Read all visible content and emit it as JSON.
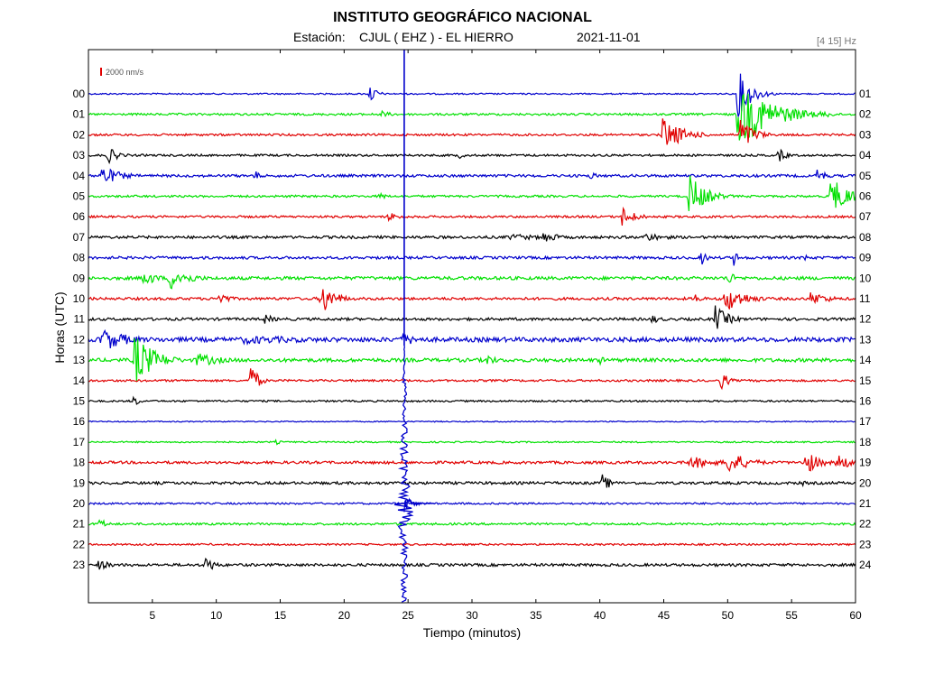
{
  "header": {
    "title": "INSTITUTO GEOGRÁFICO NACIONAL",
    "station_label": "Estación:",
    "station": "CJUL ( EHZ ) - EL HIERRO",
    "date": "2021-11-01",
    "filter": "[4 15] Hz",
    "scale": "2000 nm/s"
  },
  "chart_data": {
    "type": "line",
    "subtype": "helicorder",
    "title": "INSTITUTO GEOGRÁFICO NACIONAL",
    "xlabel": "Tiempo (minutos)",
    "ylabel": "Horas (UTC)",
    "xlim": [
      0,
      60
    ],
    "x_ticks": [
      5,
      10,
      15,
      20,
      25,
      30,
      35,
      40,
      45,
      50,
      55,
      60
    ],
    "left_labels": [
      "00",
      "01",
      "02",
      "03",
      "04",
      "05",
      "06",
      "07",
      "08",
      "09",
      "10",
      "11",
      "12",
      "13",
      "14",
      "15",
      "16",
      "17",
      "18",
      "19",
      "20",
      "21",
      "22",
      "23"
    ],
    "right_labels": [
      "01",
      "02",
      "03",
      "04",
      "05",
      "06",
      "07",
      "08",
      "09",
      "10",
      "11",
      "12",
      "13",
      "14",
      "15",
      "16",
      "17",
      "18",
      "19",
      "20",
      "21",
      "22",
      "23",
      "24"
    ],
    "colors": [
      "#0000cc",
      "#00e000",
      "#e00000",
      "#000000"
    ],
    "noise": [
      0.8,
      1.2,
      1.2,
      1.2,
      1.5,
      1.2,
      1.2,
      1.5,
      1.5,
      1.8,
      1.5,
      1.5,
      2.5,
      2.0,
      1.2,
      1.0,
      0.6,
      0.8,
      1.5,
      1.5,
      1.0,
      1.2,
      1.0,
      1.5
    ],
    "events": [
      {
        "hour": 0,
        "minute": 22.0,
        "amp": 12,
        "dur": 0.5
      },
      {
        "hour": 0,
        "minute": 50.8,
        "amp": 28,
        "dur": 1.0
      },
      {
        "hour": 1,
        "minute": 22.8,
        "amp": 5,
        "dur": 0.8
      },
      {
        "hour": 1,
        "minute": 50.8,
        "amp": 38,
        "dur": 2.5
      },
      {
        "hour": 1,
        "minute": 57.8,
        "amp": 4,
        "dur": 0.6
      },
      {
        "hour": 2,
        "minute": 44.9,
        "amp": 20,
        "dur": 1.5
      },
      {
        "hour": 2,
        "minute": 51.0,
        "amp": 20,
        "dur": 1.0
      },
      {
        "hour": 3,
        "minute": 1.5,
        "amp": 10,
        "dur": 0.8
      },
      {
        "hour": 3,
        "minute": 29.0,
        "amp": 4,
        "dur": 0.5
      },
      {
        "hour": 3,
        "minute": 54.0,
        "amp": 8,
        "dur": 0.6
      },
      {
        "hour": 4,
        "minute": 0.9,
        "amp": 12,
        "dur": 1.5
      },
      {
        "hour": 4,
        "minute": 13.0,
        "amp": 6,
        "dur": 0.5
      },
      {
        "hour": 4,
        "minute": 39.3,
        "amp": 5,
        "dur": 0.5
      },
      {
        "hour": 4,
        "minute": 57.0,
        "amp": 10,
        "dur": 0.6
      },
      {
        "hour": 5,
        "minute": 22.8,
        "amp": 5,
        "dur": 0.5
      },
      {
        "hour": 5,
        "minute": 47.0,
        "amp": 25,
        "dur": 1.2
      },
      {
        "hour": 5,
        "minute": 58.0,
        "amp": 22,
        "dur": 1.5
      },
      {
        "hour": 6,
        "minute": 23.5,
        "amp": 6,
        "dur": 0.8
      },
      {
        "hour": 6,
        "minute": 41.7,
        "amp": 12,
        "dur": 1.0
      },
      {
        "hour": 7,
        "minute": 33.0,
        "amp": 4,
        "dur": 3.0
      },
      {
        "hour": 7,
        "minute": 35.6,
        "amp": 8,
        "dur": 1.0
      },
      {
        "hour": 7,
        "minute": 43.5,
        "amp": 5,
        "dur": 2.0
      },
      {
        "hour": 8,
        "minute": 48.0,
        "amp": 12,
        "dur": 0.3
      },
      {
        "hour": 8,
        "minute": 50.5,
        "amp": 10,
        "dur": 0.3
      },
      {
        "hour": 8,
        "minute": 56.0,
        "amp": 5,
        "dur": 0.4
      },
      {
        "hour": 9,
        "minute": 4.3,
        "amp": 10,
        "dur": 1.0
      },
      {
        "hour": 9,
        "minute": 6.3,
        "amp": 14,
        "dur": 1.5
      },
      {
        "hour": 9,
        "minute": 50.0,
        "amp": 10,
        "dur": 0.5
      },
      {
        "hour": 10,
        "minute": 10.2,
        "amp": 8,
        "dur": 0.8
      },
      {
        "hour": 10,
        "minute": 18.2,
        "amp": 20,
        "dur": 1.0
      },
      {
        "hour": 10,
        "minute": 47.5,
        "amp": 6,
        "dur": 0.6
      },
      {
        "hour": 10,
        "minute": 49.8,
        "amp": 16,
        "dur": 1.5
      },
      {
        "hour": 10,
        "minute": 56.5,
        "amp": 8,
        "dur": 1.5
      },
      {
        "hour": 11,
        "minute": 13.8,
        "amp": 6,
        "dur": 0.8
      },
      {
        "hour": 11,
        "minute": 44.0,
        "amp": 5,
        "dur": 1.0
      },
      {
        "hour": 11,
        "minute": 49.0,
        "amp": 16,
        "dur": 1.0
      },
      {
        "hour": 12,
        "minute": 1.0,
        "amp": 14,
        "dur": 2.0
      },
      {
        "hour": 12,
        "minute": 12.0,
        "amp": 5,
        "dur": 8.0
      },
      {
        "hour": 12,
        "minute": 24.2,
        "amp": 8,
        "dur": 2.0
      },
      {
        "hour": 13,
        "minute": 3.6,
        "amp": 30,
        "dur": 1.5
      },
      {
        "hour": 13,
        "minute": 8.5,
        "amp": 8,
        "dur": 2.0
      },
      {
        "hour": 13,
        "minute": 31.2,
        "amp": 8,
        "dur": 0.6
      },
      {
        "hour": 13,
        "minute": 40.0,
        "amp": 5,
        "dur": 0.5
      },
      {
        "hour": 14,
        "minute": 12.7,
        "amp": 22,
        "dur": 0.5
      },
      {
        "hour": 14,
        "minute": 49.5,
        "amp": 12,
        "dur": 0.5
      },
      {
        "hour": 15,
        "minute": 3.5,
        "amp": 8,
        "dur": 0.4
      },
      {
        "hour": 17,
        "minute": 14.7,
        "amp": 3,
        "dur": 0.4
      },
      {
        "hour": 18,
        "minute": 47.0,
        "amp": 8,
        "dur": 2.0
      },
      {
        "hour": 18,
        "minute": 50.0,
        "amp": 14,
        "dur": 1.5
      },
      {
        "hour": 18,
        "minute": 56.0,
        "amp": 16,
        "dur": 1.0
      },
      {
        "hour": 18,
        "minute": 58.5,
        "amp": 10,
        "dur": 1.2
      },
      {
        "hour": 19,
        "minute": 40.2,
        "amp": 10,
        "dur": 0.7
      },
      {
        "hour": 19,
        "minute": 55.8,
        "amp": 4,
        "dur": 0.4
      },
      {
        "hour": 21,
        "minute": 0.8,
        "amp": 7,
        "dur": 0.6
      },
      {
        "hour": 23,
        "minute": 0.8,
        "amp": 6,
        "dur": 1.0
      },
      {
        "hour": 23,
        "minute": 9.2,
        "amp": 14,
        "dur": 0.5
      }
    ],
    "major_event": {
      "minute": 24.7,
      "start_hour": 12.3,
      "peak_hour": 20,
      "amp": 10
    },
    "grid": false,
    "legend": "none"
  }
}
